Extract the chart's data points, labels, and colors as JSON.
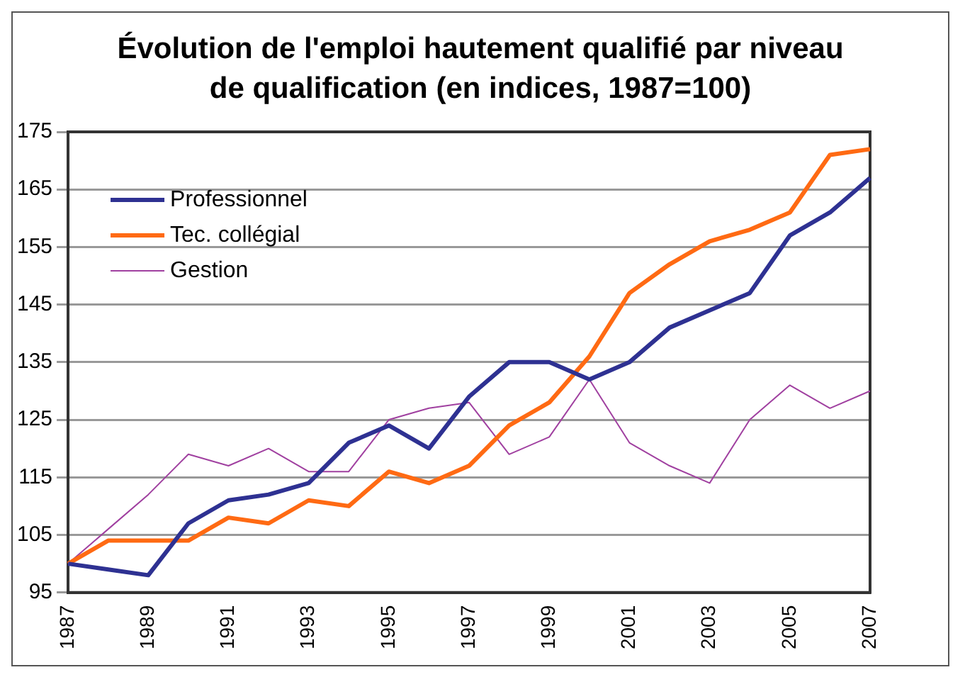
{
  "chart_data": {
    "type": "line",
    "title": "Évolution de l'emploi hautement qualifié par niveau de qualification (en indices, 1987=100)",
    "categories": [
      "1987",
      null,
      "1989",
      null,
      "1991",
      null,
      "1993",
      null,
      "1995",
      null,
      "1997",
      null,
      "1999",
      null,
      "2001",
      null,
      "2003",
      null,
      "2005",
      null,
      "2007"
    ],
    "series": [
      {
        "name": "Professionnel",
        "color": "#2e3192",
        "values": [
          100,
          99,
          98,
          107,
          111,
          112,
          114,
          121,
          124,
          120,
          129,
          135,
          135,
          132,
          135,
          141,
          144,
          147,
          157,
          161,
          167
        ]
      },
      {
        "name": "Tec. collégial",
        "color": "#ff6a13",
        "values": [
          100,
          104,
          104,
          104,
          108,
          107,
          111,
          110,
          116,
          114,
          117,
          124,
          128,
          136,
          147,
          152,
          156,
          158,
          161,
          171,
          172
        ]
      },
      {
        "name": "Gestion",
        "color": "#a040a0",
        "values": [
          100,
          106,
          112,
          119,
          117,
          120,
          116,
          116,
          125,
          127,
          128,
          119,
          122,
          132,
          121,
          117,
          114,
          125,
          131,
          127,
          130
        ]
      }
    ],
    "ylim": [
      95,
      175
    ],
    "yticks": [
      95,
      105,
      115,
      125,
      135,
      145,
      155,
      165,
      175
    ],
    "grid": "y",
    "legend": "top left",
    "marker": "none",
    "line_style": "solid"
  }
}
